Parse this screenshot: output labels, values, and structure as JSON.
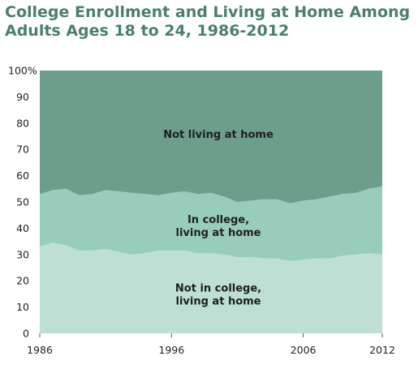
{
  "chart_data": {
    "type": "area",
    "stacked": true,
    "title_lines": [
      "College Enrollment and Living at Home Among",
      "Adults Ages 18 to 24, 1986-2012"
    ],
    "x": [
      1986,
      1987,
      1988,
      1989,
      1990,
      1991,
      1992,
      1993,
      1994,
      1995,
      1996,
      1997,
      1998,
      1999,
      2000,
      2001,
      2002,
      2003,
      2004,
      2005,
      2006,
      2007,
      2008,
      2009,
      2010,
      2011,
      2012
    ],
    "xticks": [
      {
        "value": 1986,
        "label": "1986"
      },
      {
        "value": 1996,
        "label": "1996"
      },
      {
        "value": 2006,
        "label": "2006"
      },
      {
        "value": 2012,
        "label": "2012"
      }
    ],
    "yticks": [
      {
        "value": 0,
        "label": "0"
      },
      {
        "value": 10,
        "label": "10"
      },
      {
        "value": 20,
        "label": "20"
      },
      {
        "value": 30,
        "label": "30"
      },
      {
        "value": 40,
        "label": "40"
      },
      {
        "value": 50,
        "label": "50"
      },
      {
        "value": 60,
        "label": "60"
      },
      {
        "value": 70,
        "label": "70"
      },
      {
        "value": 80,
        "label": "80"
      },
      {
        "value": 90,
        "label": "90"
      },
      {
        "value": 100,
        "label": "100%"
      }
    ],
    "ylim": [
      0,
      100
    ],
    "xlim": [
      1986,
      2012
    ],
    "series": [
      {
        "key": "not_college_home",
        "label_lines": [
          "Not in college,",
          "living at home"
        ],
        "color": "#bddfd4",
        "values": [
          33,
          34.5,
          33.5,
          31.5,
          31.5,
          32,
          31,
          30,
          30.5,
          31.5,
          31.5,
          31.5,
          30.5,
          30.5,
          30,
          29,
          29,
          28.5,
          28.5,
          27.5,
          28,
          28.5,
          28.5,
          29.5,
          30,
          30.5,
          30
        ]
      },
      {
        "key": "college_home",
        "label_lines": [
          "In college,",
          "living at home"
        ],
        "color": "#98cdbb",
        "values": [
          20,
          20,
          21.5,
          21,
          21.5,
          22.5,
          23,
          23.5,
          22.5,
          21,
          22,
          22.5,
          22.5,
          23,
          22,
          21,
          21.5,
          22.5,
          22.5,
          22,
          22.5,
          22.5,
          23.5,
          23.5,
          23.5,
          24.5,
          26
        ]
      },
      {
        "key": "not_home",
        "label_lines": [
          "Not living at home"
        ],
        "color": "#6d9e8c",
        "values": [
          47,
          45.5,
          45,
          47.5,
          47,
          45.5,
          46,
          46.5,
          47,
          47.5,
          46.5,
          46,
          47,
          46.5,
          48,
          50,
          49.5,
          49,
          49,
          50.5,
          49.5,
          49,
          48,
          47,
          46.5,
          45,
          44
        ]
      }
    ]
  }
}
